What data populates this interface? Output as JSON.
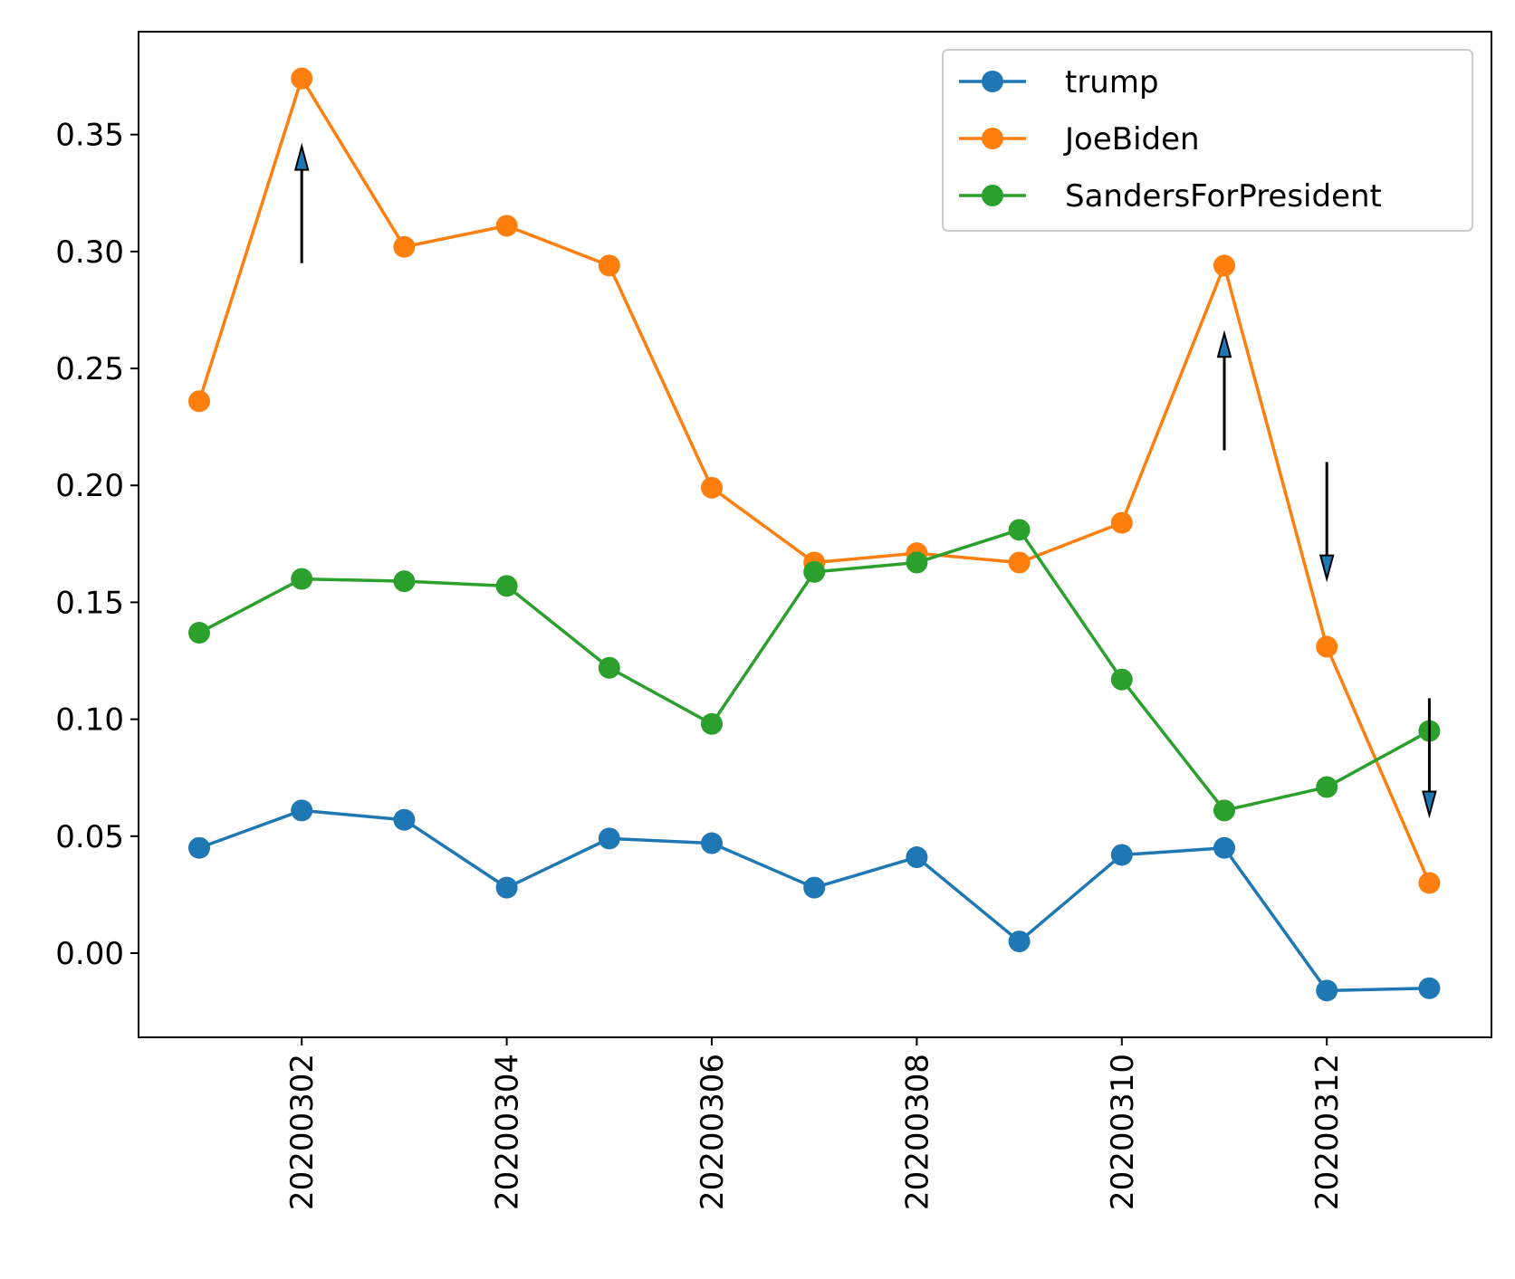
{
  "chart_data": {
    "type": "line",
    "title": "",
    "xlabel": "",
    "ylabel": "",
    "x": [
      "20200301",
      "20200302",
      "20200303",
      "20200304",
      "20200305",
      "20200306",
      "20200307",
      "20200308",
      "20200309",
      "20200310",
      "20200311",
      "20200312",
      "20200313"
    ],
    "xtick_labels": [
      "20200302",
      "20200304",
      "20200306",
      "20200308",
      "20200310",
      "20200312"
    ],
    "ytick_labels": [
      "0.00",
      "0.05",
      "0.10",
      "0.15",
      "0.20",
      "0.25",
      "0.30",
      "0.35"
    ],
    "yticks": [
      0.0,
      0.05,
      0.1,
      0.15,
      0.2,
      0.25,
      0.3,
      0.35
    ],
    "ylim": [
      -0.036,
      0.394
    ],
    "grid": false,
    "legend_position": "top-right",
    "series": [
      {
        "name": "trump",
        "color": "#1f77b4",
        "values": [
          0.045,
          0.061,
          0.057,
          0.028,
          0.049,
          0.047,
          0.028,
          0.041,
          0.005,
          0.042,
          0.045,
          -0.016,
          -0.015
        ]
      },
      {
        "name": "JoeBiden",
        "color": "#ff7f0e",
        "values": [
          0.236,
          0.374,
          0.302,
          0.311,
          0.294,
          0.199,
          0.167,
          0.171,
          0.167,
          0.184,
          0.294,
          0.131,
          0.03
        ]
      },
      {
        "name": "SandersForPresident",
        "color": "#2ca02c",
        "values": [
          0.137,
          0.16,
          0.159,
          0.157,
          0.122,
          0.098,
          0.163,
          0.167,
          0.181,
          0.117,
          0.061,
          0.071,
          0.095
        ]
      }
    ],
    "annotations": [
      {
        "type": "arrow",
        "x": "20200302",
        "from": 0.295,
        "to": 0.345,
        "direction": "up"
      },
      {
        "type": "arrow",
        "x": "20200311",
        "from": 0.215,
        "to": 0.265,
        "direction": "up"
      },
      {
        "type": "arrow",
        "x": "20200312",
        "from": 0.21,
        "to": 0.16,
        "direction": "down"
      },
      {
        "type": "arrow",
        "x": "20200313",
        "from": 0.109,
        "to": 0.059,
        "direction": "down"
      }
    ]
  }
}
